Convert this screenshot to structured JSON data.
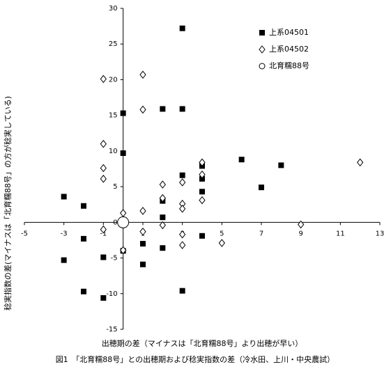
{
  "chart_data": {
    "type": "scatter",
    "xlabel": "出穂期の差（マイナスは「北育糯88号」より出穂が早い）",
    "ylabel": "稔実指数の差(マイナスは「北育糯88号」の方が稔実している)",
    "caption": "図1　「北育糯88号」との出穂期および稔実指数の差（冷水田、上川・中央農試）",
    "xlim": [
      -5,
      13
    ],
    "xticks": [
      -5,
      -3,
      -1,
      1,
      3,
      5,
      7,
      9,
      11,
      13
    ],
    "ylim": [
      -15,
      30
    ],
    "yticks": [
      -15,
      -10,
      -5,
      0,
      5,
      10,
      15,
      20,
      25,
      30
    ],
    "legend": "upper right",
    "series": [
      {
        "name": "上系04501",
        "marker": "square",
        "color": "#000000",
        "x": [
          0,
          3,
          2,
          3,
          0,
          6,
          8,
          4,
          3,
          4,
          7,
          4,
          -3,
          2,
          -2,
          2,
          4,
          -2,
          1,
          2,
          0,
          -1,
          -3,
          1,
          -2,
          3,
          -1
        ],
        "values": [
          15.3,
          27.2,
          15.9,
          15.9,
          9.7,
          8.8,
          8.0,
          7.9,
          6.6,
          6.1,
          4.9,
          4.3,
          3.6,
          3.0,
          2.3,
          0.7,
          -1.9,
          -2.3,
          -3.0,
          -3.6,
          -4.0,
          -4.9,
          -5.3,
          -5.9,
          -9.7,
          -9.6,
          -10.6
        ]
      },
      {
        "name": "上系04502",
        "marker": "diamond",
        "color": "#000000",
        "x": [
          -1,
          1,
          1,
          -1,
          -1,
          -1,
          12,
          4,
          3,
          2,
          4,
          2,
          4,
          3,
          3,
          0,
          1,
          9,
          2,
          -1,
          1,
          3,
          3,
          5,
          0
        ],
        "values": [
          20.1,
          20.7,
          15.8,
          11.0,
          7.6,
          6.1,
          8.4,
          8.4,
          5.6,
          5.3,
          6.7,
          3.4,
          3.1,
          2.6,
          1.9,
          1.3,
          1.6,
          -0.3,
          -0.4,
          -1.0,
          -1.3,
          -1.7,
          -3.2,
          -2.9,
          -3.9
        ]
      },
      {
        "name": "北育糯88号",
        "marker": "circle",
        "color": "#000000",
        "x": [
          0
        ],
        "values": [
          0
        ]
      }
    ]
  }
}
